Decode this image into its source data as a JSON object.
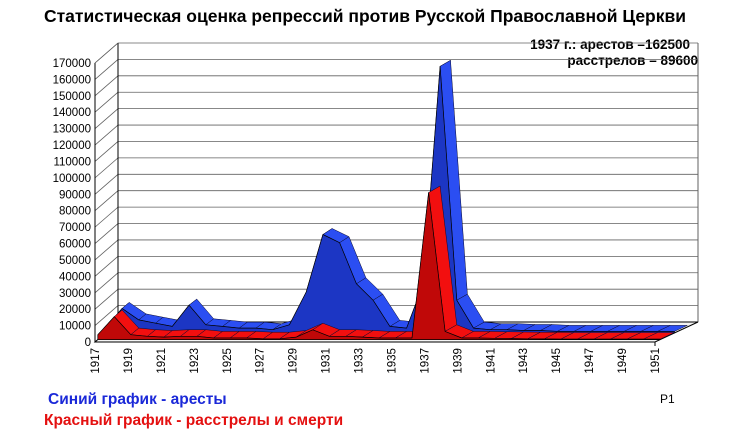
{
  "colors": {
    "arrests": "#2b4ef2",
    "executions": "#f20f0f",
    "grid": "#606060",
    "background": "#ffffff"
  },
  "header": {
    "title": "Статистическая оценка репрессий против Русской Православной Церкви",
    "annotation_line1": "1937  г.: арестов –162500",
    "annotation_line2": "расстрелов – 89600"
  },
  "legend": {
    "blue": "Синий график -  аресты",
    "red": "Красный график - расстрелы  и смерти"
  },
  "chart_data": {
    "type": "area",
    "title": "Статистическая оценка репрессий против Русской Православной Церкви",
    "subtitle": "1937  г.: арестов –162500; расстрелов – 89600",
    "x": [
      1917,
      1918,
      1919,
      1920,
      1921,
      1922,
      1923,
      1924,
      1925,
      1926,
      1927,
      1928,
      1929,
      1930,
      1931,
      1932,
      1933,
      1934,
      1935,
      1936,
      1937,
      1938,
      1939,
      1940,
      1941,
      1942,
      1943,
      1944,
      1945,
      1946,
      1947,
      1948,
      1949,
      1950,
      1951
    ],
    "x_tick_labels": [
      "1917",
      "1919",
      "1921",
      "1923",
      "1925",
      "1927",
      "1929",
      "1931",
      "1933",
      "1935",
      "1937",
      "1939",
      "1941",
      "1943",
      "1945",
      "1947",
      "1949",
      "1951"
    ],
    "ylim": [
      0,
      170000
    ],
    "y_ticks": [
      0,
      10000,
      20000,
      30000,
      40000,
      50000,
      60000,
      70000,
      80000,
      90000,
      100000,
      110000,
      120000,
      130000,
      140000,
      150000,
      160000,
      170000
    ],
    "series_axis_label": "P1",
    "grid": true,
    "series": [
      {
        "name": "Синий график -  аресты",
        "color": "#2b4ef2",
        "values": [
          3000,
          15000,
          8000,
          6000,
          4000,
          17000,
          5000,
          4000,
          3000,
          3000,
          2000,
          5000,
          25000,
          60000,
          55000,
          30000,
          20000,
          4000,
          3000,
          30000,
          162500,
          20000,
          3000,
          2000,
          2000,
          1500,
          1500,
          1000,
          1000,
          1000,
          1000,
          1000,
          1000,
          1000,
          1000
        ]
      },
      {
        "name": "Красный график - расстрелы  и смерти",
        "color": "#f20f0f",
        "values": [
          3000,
          14000,
          3000,
          2000,
          1500,
          2000,
          2000,
          1000,
          1000,
          1000,
          500,
          500,
          1500,
          6000,
          2000,
          2000,
          1500,
          1000,
          1000,
          1000,
          89600,
          5000,
          1000,
          1000,
          800,
          600,
          500,
          400,
          300,
          300,
          300,
          300,
          300,
          300,
          300
        ]
      }
    ]
  }
}
